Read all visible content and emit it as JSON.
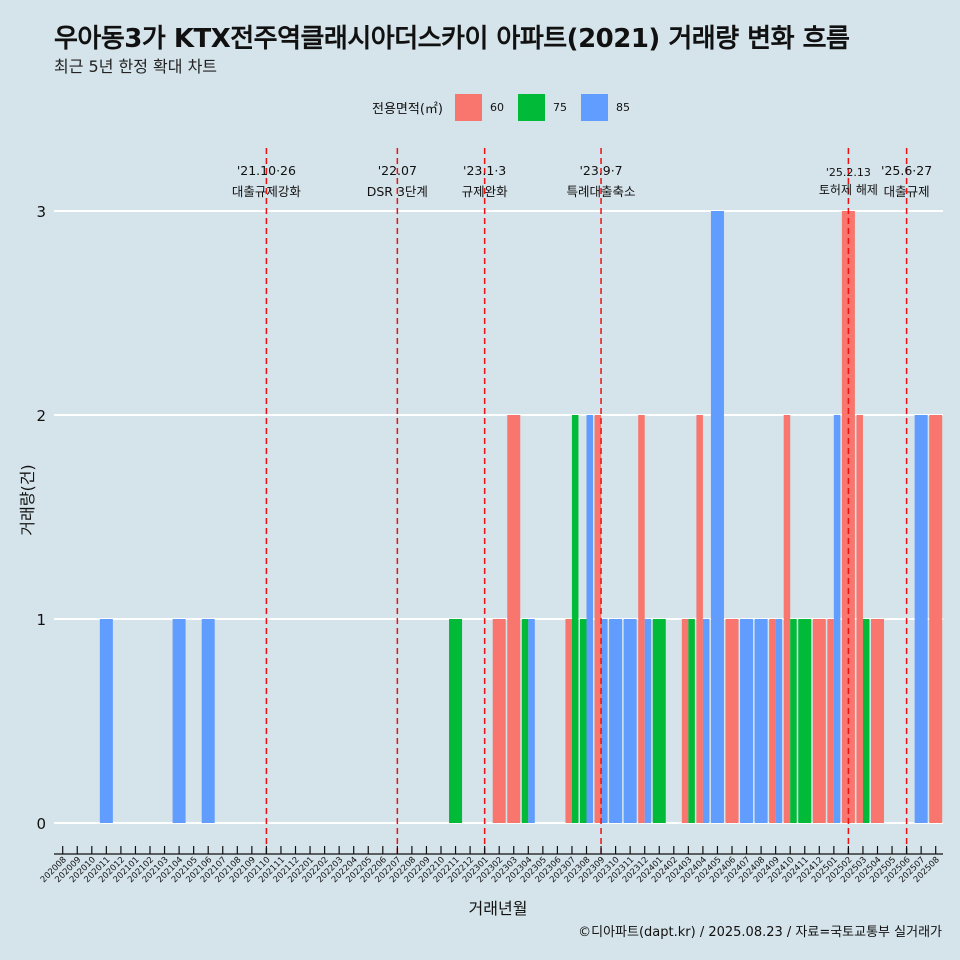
{
  "title": "우아동3가 KTX전주역클래시아더스카이 아파트(2021) 거래량 변화 흐름",
  "subtitle": "최근 5년 한정 확대 차트",
  "caption": "©디아파트(dapt.kr) / 2025.08.23 / 자료=국토교통부 실거래가",
  "legend": {
    "title": "전용면적(㎡)",
    "items": [
      {
        "label": "60",
        "color": "#f8766d"
      },
      {
        "label": "75",
        "color": "#00ba38"
      },
      {
        "label": "85",
        "color": "#619cff"
      }
    ]
  },
  "chart_data": {
    "type": "bar",
    "xlabel": "거래년월",
    "ylabel": "거래량(건)",
    "ylim": [
      0,
      3
    ],
    "yticks": [
      0,
      1,
      2,
      3
    ],
    "grid": true,
    "legend_position": "top",
    "categories": [
      "202008",
      "202009",
      "202010",
      "202011",
      "202012",
      "202101",
      "202102",
      "202103",
      "202104",
      "202105",
      "202106",
      "202107",
      "202108",
      "202109",
      "202110",
      "202111",
      "202112",
      "202201",
      "202202",
      "202203",
      "202204",
      "202205",
      "202206",
      "202207",
      "202208",
      "202209",
      "202210",
      "202211",
      "202212",
      "202301",
      "202302",
      "202303",
      "202304",
      "202305",
      "202306",
      "202307",
      "202308",
      "202309",
      "202310",
      "202311",
      "202312",
      "202401",
      "202402",
      "202403",
      "202404",
      "202405",
      "202406",
      "202407",
      "202408",
      "202409",
      "202410",
      "202411",
      "202412",
      "202501",
      "202502",
      "202503",
      "202504",
      "202505",
      "202506",
      "202507",
      "202508"
    ],
    "series": [
      {
        "name": "60",
        "color": "#f8766d",
        "values": [
          0,
          0,
          0,
          0,
          0,
          0,
          0,
          0,
          0,
          0,
          0,
          0,
          0,
          0,
          0,
          0,
          0,
          0,
          0,
          0,
          0,
          0,
          0,
          0,
          0,
          0,
          0,
          0,
          0,
          0,
          1,
          2,
          0,
          0,
          0,
          1,
          0,
          2,
          0,
          0,
          2,
          0,
          0,
          1,
          2,
          0,
          1,
          0,
          0,
          1,
          2,
          0,
          1,
          1,
          3,
          2,
          1,
          0,
          0,
          0,
          2
        ]
      },
      {
        "name": "75",
        "color": "#00ba38",
        "values": [
          0,
          0,
          0,
          0,
          0,
          0,
          0,
          0,
          0,
          0,
          0,
          0,
          0,
          0,
          0,
          0,
          0,
          0,
          0,
          0,
          0,
          0,
          0,
          0,
          0,
          0,
          0,
          1,
          0,
          0,
          0,
          0,
          1,
          0,
          0,
          2,
          1,
          0,
          0,
          0,
          0,
          1,
          0,
          1,
          0,
          0,
          0,
          0,
          0,
          0,
          1,
          1,
          0,
          0,
          0,
          1,
          0,
          0,
          0,
          0,
          0
        ]
      },
      {
        "name": "85",
        "color": "#619cff",
        "values": [
          0,
          0,
          0,
          1,
          0,
          0,
          0,
          0,
          1,
          0,
          1,
          0,
          0,
          0,
          0,
          0,
          0,
          0,
          0,
          0,
          0,
          0,
          0,
          0,
          0,
          0,
          0,
          0,
          0,
          0,
          0,
          0,
          1,
          0,
          0,
          0,
          2,
          1,
          1,
          1,
          1,
          0,
          0,
          0,
          1,
          3,
          0,
          1,
          1,
          1,
          0,
          0,
          0,
          2,
          0,
          0,
          0,
          0,
          0,
          2,
          0
        ]
      }
    ],
    "annotations": [
      {
        "month": "202110",
        "date": "'21.10·26",
        "label": "대출규제강화"
      },
      {
        "month": "202207",
        "date": "'22.07",
        "label": "DSR 3단계"
      },
      {
        "month": "202301",
        "date": "'23.1·3",
        "label": "규제완화"
      },
      {
        "month": "202309",
        "date": "'23.9·7",
        "label": "특례대출축소"
      },
      {
        "month": "202502",
        "date": "'25.2.13",
        "label": "토허제 해제"
      },
      {
        "month": "202506",
        "date": "'25.6·27",
        "label": "대출규제"
      }
    ]
  }
}
